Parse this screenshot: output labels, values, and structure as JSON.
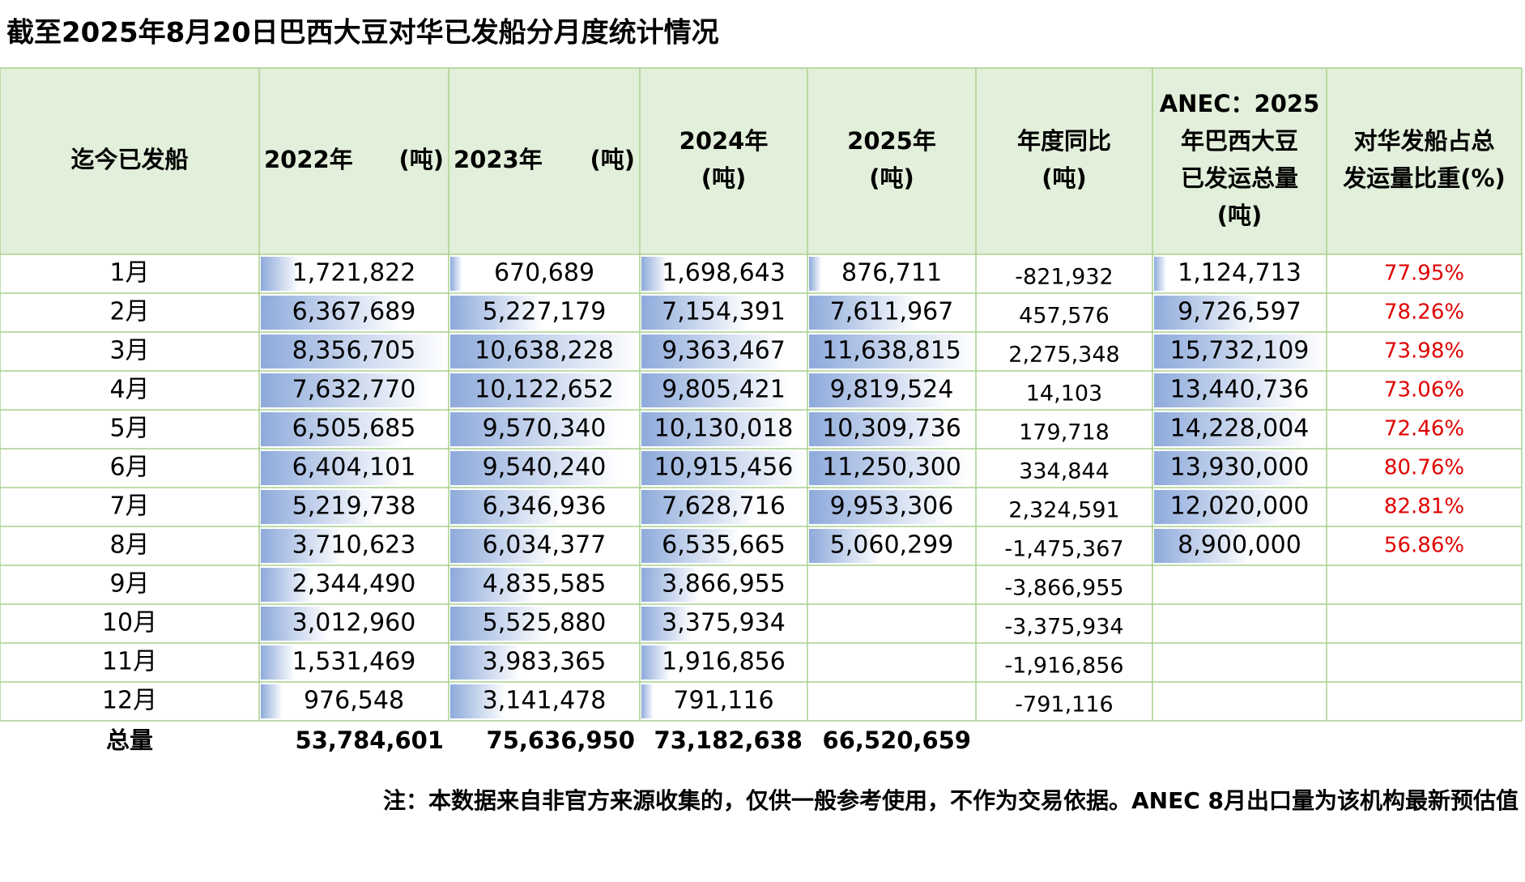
{
  "title": "截至2025年8月20日巴西大豆对华已发船分月度统计情况",
  "table": {
    "header": [
      [
        "迄今已发船"
      ],
      [
        "2022年",
        "(吨)"
      ],
      [
        "2023年",
        "(吨)"
      ],
      [
        "2024年",
        "(吨)"
      ],
      [
        "2025年",
        "(吨)"
      ],
      [
        "年度同比",
        "(吨)"
      ],
      [
        "ANEC：2025",
        "年巴西大豆",
        "已发运总量",
        "(吨)"
      ],
      [
        "对华发船占总",
        "发运量比重(%)"
      ]
    ],
    "rows": [
      [
        "1月",
        "1,721,822",
        "670,689",
        "1,698,643",
        "876,711",
        "-821,932",
        "1,124,713",
        "77.95%"
      ],
      [
        "2月",
        "6,367,689",
        "5,227,179",
        "7,154,391",
        "7,611,967",
        "457,576",
        "9,726,597",
        "78.26%"
      ],
      [
        "3月",
        "8,356,705",
        "10,638,228",
        "9,363,467",
        "11,638,815",
        "2,275,348",
        "15,732,109",
        "73.98%"
      ],
      [
        "4月",
        "7,632,770",
        "10,122,652",
        "9,805,421",
        "9,819,524",
        "14,103",
        "13,440,736",
        "73.06%"
      ],
      [
        "5月",
        "6,505,685",
        "9,570,340",
        "10,130,018",
        "10,309,736",
        "179,718",
        "14,228,004",
        "72.46%"
      ],
      [
        "6月",
        "6,404,101",
        "9,540,240",
        "10,915,456",
        "11,250,300",
        "334,844",
        "13,930,000",
        "80.76%"
      ],
      [
        "7月",
        "5,219,738",
        "6,346,936",
        "7,628,716",
        "9,953,306",
        "2,324,591",
        "12,020,000",
        "82.81%"
      ],
      [
        "8月",
        "3,710,623",
        "6,034,377",
        "6,535,665",
        "5,060,299",
        "-1,475,367",
        "8,900,000",
        "56.86%"
      ],
      [
        "9月",
        "2,344,490",
        "4,835,585",
        "3,866,955",
        null,
        "-3,866,955",
        null,
        null
      ],
      [
        "10月",
        "3,012,960",
        "5,525,880",
        "3,375,934",
        null,
        "-3,375,934",
        null,
        null
      ],
      [
        "11月",
        "1,531,469",
        "3,983,365",
        "1,916,856",
        null,
        "-1,916,856",
        null,
        null
      ],
      [
        "12月",
        "976,548",
        "3,141,478",
        "791,116",
        null,
        "-791,116",
        null,
        null
      ]
    ],
    "total": [
      "总量",
      "53,784,601",
      "75,636,950",
      "73,182,638",
      "66,520,659"
    ]
  },
  "note": "注：本数据来自非官方来源收集的，仅供一般参考使用，不作为交易依据。ANEC 8月出口量为该机构最新预估值"
}
